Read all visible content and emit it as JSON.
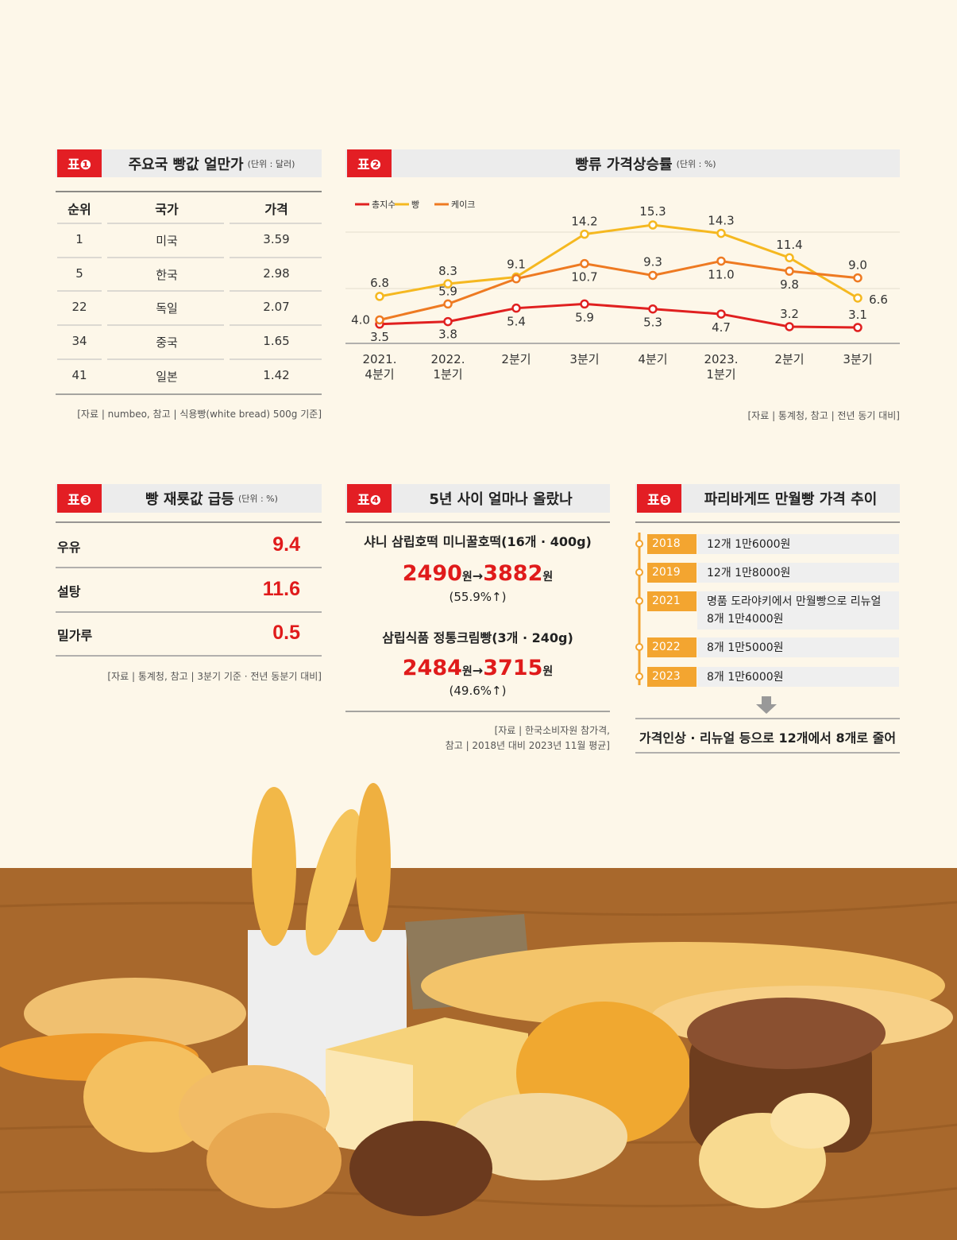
{
  "table1": {
    "badge": "표❶",
    "title": "주요국 빵값 얼만가",
    "unit": "(단위 : 달러)",
    "columns": [
      "순위",
      "국가",
      "가격"
    ],
    "rows": [
      [
        "1",
        "미국",
        "3.59"
      ],
      [
        "5",
        "한국",
        "2.98"
      ],
      [
        "22",
        "독일",
        "2.07"
      ],
      [
        "34",
        "중국",
        "1.65"
      ],
      [
        "41",
        "일본",
        "1.42"
      ]
    ],
    "source": "[자료 | numbeo, 참고 | 식용빵(white bread) 500g 기준]"
  },
  "chart_data": {
    "type": "line",
    "badge": "표❷",
    "title": "빵류 가격상승률",
    "unit": "(단위 : %)",
    "categories": [
      "2021.\n4분기",
      "2022.\n1분기",
      "2분기",
      "3분기",
      "4분기",
      "2023.\n1분기",
      "2분기",
      "3분기"
    ],
    "series": [
      {
        "name": "총지수",
        "color": "#e02020",
        "values": [
          3.5,
          3.8,
          5.4,
          5.9,
          5.3,
          4.7,
          3.2,
          3.1
        ],
        "value_labels": [
          "3.5",
          "3.8",
          "5.4",
          "5.9",
          "5.3",
          "4.7",
          "3.2",
          "3.1"
        ]
      },
      {
        "name": "빵",
        "color": "#f5b820",
        "values": [
          6.8,
          8.3,
          9.1,
          14.2,
          15.3,
          14.3,
          11.4,
          6.6
        ],
        "value_labels": [
          "6.8",
          "8.3",
          "9.1",
          "14.2",
          "15.3",
          "14.3",
          "11.4",
          "6.6"
        ]
      },
      {
        "name": "케이크",
        "color": "#ee7a22",
        "values": [
          4.0,
          5.9,
          8.9,
          10.7,
          9.3,
          11.0,
          9.8,
          9.0
        ],
        "value_labels": [
          "4.0",
          "5.9",
          null,
          "10.7",
          "9.3",
          "11.0",
          "9.8",
          "9.0"
        ]
      }
    ],
    "source": "[자료 | 통계청, 참고 | 전년 동기 대비]"
  },
  "table3": {
    "badge": "표❸",
    "title": "빵 재룟값 급등",
    "unit": "(단위 : %)",
    "rows": [
      [
        "우유",
        "9.4"
      ],
      [
        "설탕",
        "11.6"
      ],
      [
        "밀가루",
        "0.5"
      ]
    ],
    "source": "[자료 | 통계청, 참고 | 3분기 기준 · 전년 동분기 대비]"
  },
  "panel4": {
    "badge": "표❹",
    "title": "5년 사이 얼마나 올랐나",
    "items": [
      {
        "name": "샤니 삼립호떡 미니꿀호떡(16개 · 400g)",
        "from": "2490",
        "from_unit": "원",
        "arrow": "→",
        "to": "3882",
        "to_unit": "원",
        "change": "(55.9%↑)"
      },
      {
        "name": "삼립식품 정통크림빵(3개 · 240g)",
        "from": "2484",
        "from_unit": "원",
        "arrow": "→",
        "to": "3715",
        "to_unit": "원",
        "change": "(49.6%↑)"
      }
    ],
    "source": [
      "[자료 | 한국소비자원 참가격,",
      "참고 | 2018년 대비 2023년 11월 평균]"
    ]
  },
  "panel5": {
    "badge": "표❺",
    "title": "파리바게뜨 만월빵 가격 추이",
    "timeline": [
      {
        "year": "2018",
        "text": "12개 1만6000원"
      },
      {
        "year": "2019",
        "text": "12개 1만8000원"
      },
      {
        "year": "2021",
        "text": "명품 도라야키에서 만월빵으로 리뉴얼\n8개 1만4000원"
      },
      {
        "year": "2022",
        "text": "8개 1만5000원"
      },
      {
        "year": "2023",
        "text": "8개 1만6000원"
      }
    ],
    "summary": "가격인상 · 리뉴얼 등으로 12개에서 8개로 줄어"
  }
}
